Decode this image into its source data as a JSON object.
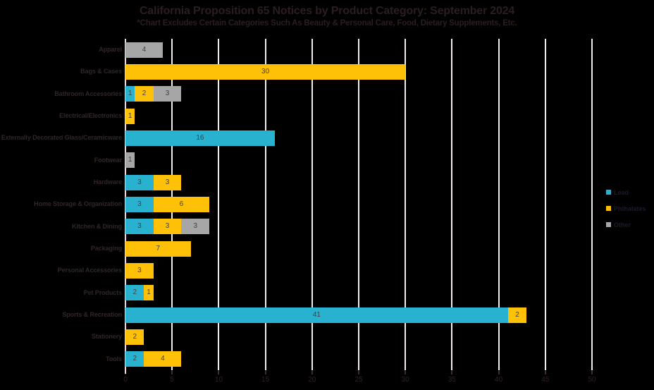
{
  "title": "California Proposition 65 Notices by Product Category: September 2024",
  "subtitle": "*Chart Excludes Certain Categories Such As Beauty & Personal Care, Food, Dietary Supplements, Etc.",
  "colors": {
    "background": "#000000",
    "title_text": "#2b1d20",
    "category_text": "#32252c",
    "value_text": "#404040",
    "tick_text": "#2d2327",
    "legend_text": "#1d1a2c",
    "gridline": "#f4edf0",
    "axis_line": "#ecd7de",
    "lead": "#28b2cf",
    "phthalates": "#ffc008",
    "other": "#a6a6a6"
  },
  "chart_data": {
    "type": "bar",
    "orientation": "horizontal",
    "stacked": true,
    "title": "California Proposition 65 Notices by Product Category: September 2024",
    "subtitle": "*Chart Excludes Certain Categories Such As Beauty & Personal Care, Food, Dietary Supplements, Etc.",
    "categories": [
      "Apparel",
      "Bags & Cases",
      "Bathroom Accessories",
      "Electrical/Electronics",
      "Externally Decorated Glass/Ceramicware",
      "Footwear",
      "Hardware",
      "Home Storage & Organization",
      "Kitchen & Dining",
      "Packaging",
      "Personal Accessories",
      "Pet Products",
      "Sports & Recreation",
      "Stationery",
      "Tools"
    ],
    "series": [
      {
        "name": "Lead",
        "color": "#28b2cf",
        "values": [
          0,
          0,
          1,
          0,
          16,
          0,
          3,
          3,
          3,
          0,
          0,
          2,
          41,
          0,
          2
        ]
      },
      {
        "name": "Phthalates",
        "color": "#ffc008",
        "values": [
          0,
          30,
          2,
          1,
          0,
          0,
          3,
          6,
          3,
          7,
          3,
          1,
          2,
          2,
          4
        ]
      },
      {
        "name": "Other",
        "color": "#a6a6a6",
        "values": [
          4,
          0,
          3,
          0,
          0,
          1,
          0,
          0,
          3,
          0,
          0,
          0,
          0,
          0,
          0
        ]
      }
    ],
    "x_ticks": [
      0,
      5,
      10,
      15,
      20,
      25,
      30,
      35,
      40,
      45,
      50
    ],
    "xlim": [
      0,
      50
    ],
    "grid": true,
    "legend_position": "right",
    "data_labels": true
  }
}
